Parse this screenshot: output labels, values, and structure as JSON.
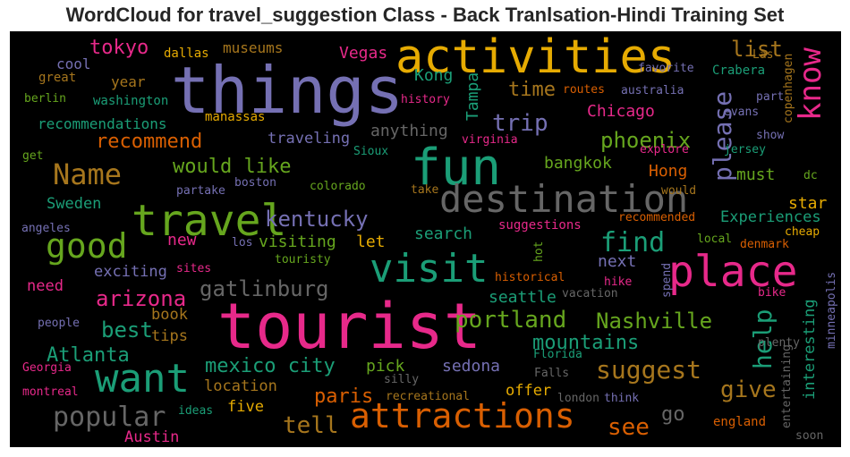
{
  "title": "WordCloud for travel_suggestion Class - Back Tranlsation-Hindi Training Set",
  "colors": {
    "background": "#000000",
    "purple": "#7570b3",
    "pink": "#e7298a",
    "orange": "#d95f02",
    "gold": "#e6ab02",
    "green": "#66a61e",
    "teal": "#1b9e77",
    "brown": "#a6761d",
    "grey": "#666666"
  },
  "words": [
    {
      "text": "things",
      "color": "purple"
    },
    {
      "text": "tourist",
      "color": "pink"
    },
    {
      "text": "activities",
      "color": "gold"
    },
    {
      "text": "fun",
      "color": "teal"
    },
    {
      "text": "destination",
      "color": "grey"
    },
    {
      "text": "travel",
      "color": "green"
    },
    {
      "text": "place",
      "color": "pink"
    },
    {
      "text": "visit",
      "color": "teal"
    },
    {
      "text": "attractions",
      "color": "orange"
    },
    {
      "text": "want",
      "color": "teal"
    },
    {
      "text": "good",
      "color": "green"
    },
    {
      "text": "Name",
      "color": "brown"
    },
    {
      "text": "know",
      "color": "pink"
    },
    {
      "text": "please",
      "color": "purple"
    },
    {
      "text": "portland",
      "color": "green"
    },
    {
      "text": "Nashville",
      "color": "green"
    },
    {
      "text": "suggest",
      "color": "brown"
    },
    {
      "text": "mountains",
      "color": "teal"
    },
    {
      "text": "popular",
      "color": "grey"
    },
    {
      "text": "kentucky",
      "color": "purple"
    },
    {
      "text": "find",
      "color": "teal"
    },
    {
      "text": "help",
      "color": "teal"
    },
    {
      "text": "gatlinburg",
      "color": "grey"
    },
    {
      "text": "mexico city",
      "color": "teal"
    },
    {
      "text": "would like",
      "color": "green"
    },
    {
      "text": "trip",
      "color": "purple"
    },
    {
      "text": "recommend",
      "color": "orange"
    },
    {
      "text": "phoenix",
      "color": "green"
    },
    {
      "text": "arizona",
      "color": "pink"
    },
    {
      "text": "Atlanta",
      "color": "teal"
    },
    {
      "text": "give",
      "color": "brown"
    },
    {
      "text": "see",
      "color": "orange"
    },
    {
      "text": "tell",
      "color": "brown"
    },
    {
      "text": "paris",
      "color": "orange"
    },
    {
      "text": "best",
      "color": "teal"
    },
    {
      "text": "tokyo",
      "color": "pink"
    },
    {
      "text": "time",
      "color": "brown"
    },
    {
      "text": "list",
      "color": "brown"
    },
    {
      "text": "Vegas",
      "color": "pink"
    },
    {
      "text": "Kong",
      "color": "teal"
    },
    {
      "text": "Tampa",
      "color": "teal"
    },
    {
      "text": "Chicago",
      "color": "pink"
    },
    {
      "text": "traveling",
      "color": "purple"
    },
    {
      "text": "anything",
      "color": "grey"
    },
    {
      "text": "bangkok",
      "color": "green"
    },
    {
      "text": "Hong",
      "color": "orange"
    },
    {
      "text": "must",
      "color": "green"
    },
    {
      "text": "Experiences",
      "color": "teal"
    },
    {
      "text": "star",
      "color": "gold"
    },
    {
      "text": "search",
      "color": "teal"
    },
    {
      "text": "next",
      "color": "purple"
    },
    {
      "text": "visiting",
      "color": "green"
    },
    {
      "text": "let",
      "color": "gold"
    },
    {
      "text": "new",
      "color": "pink"
    },
    {
      "text": "exciting",
      "color": "purple"
    },
    {
      "text": "Sweden",
      "color": "teal"
    },
    {
      "text": "seattle",
      "color": "teal"
    },
    {
      "text": "sedona",
      "color": "purple"
    },
    {
      "text": "pick",
      "color": "green"
    },
    {
      "text": "go",
      "color": "grey"
    },
    {
      "text": "interesting",
      "color": "teal"
    },
    {
      "text": "offer",
      "color": "gold"
    },
    {
      "text": "location",
      "color": "brown"
    },
    {
      "text": "five",
      "color": "gold"
    },
    {
      "text": "Austin",
      "color": "pink"
    },
    {
      "text": "tips",
      "color": "brown"
    },
    {
      "text": "book",
      "color": "brown"
    },
    {
      "text": "need",
      "color": "pink"
    },
    {
      "text": "cool",
      "color": "purple"
    },
    {
      "text": "year",
      "color": "brown"
    },
    {
      "text": "recommendations",
      "color": "teal"
    },
    {
      "text": "museums",
      "color": "brown"
    },
    {
      "text": "dallas",
      "color": "gold"
    },
    {
      "text": "great",
      "color": "brown"
    },
    {
      "text": "berlin",
      "color": "green"
    },
    {
      "text": "washington",
      "color": "teal"
    },
    {
      "text": "manassas",
      "color": "gold"
    },
    {
      "text": "history",
      "color": "pink"
    },
    {
      "text": "virginia",
      "color": "pink"
    },
    {
      "text": "routes",
      "color": "orange"
    },
    {
      "text": "australia",
      "color": "purple"
    },
    {
      "text": "favorite",
      "color": "purple"
    },
    {
      "text": "Las",
      "color": "brown"
    },
    {
      "text": "Crabera",
      "color": "teal"
    },
    {
      "text": "part",
      "color": "purple"
    },
    {
      "text": "evans",
      "color": "purple"
    },
    {
      "text": "copenhagen",
      "color": "brown"
    },
    {
      "text": "show",
      "color": "purple"
    },
    {
      "text": "jersey",
      "color": "teal"
    },
    {
      "text": "explore",
      "color": "pink"
    },
    {
      "text": "dc",
      "color": "green"
    },
    {
      "text": "would",
      "color": "brown"
    },
    {
      "text": "recommended",
      "color": "orange"
    },
    {
      "text": "suggestions",
      "color": "pink"
    },
    {
      "text": "cheap",
      "color": "gold"
    },
    {
      "text": "local",
      "color": "green"
    },
    {
      "text": "denmark",
      "color": "orange"
    },
    {
      "text": "Sioux",
      "color": "teal"
    },
    {
      "text": "colorado",
      "color": "green"
    },
    {
      "text": "boston",
      "color": "purple"
    },
    {
      "text": "partake",
      "color": "purple"
    },
    {
      "text": "take",
      "color": "brown"
    },
    {
      "text": "get",
      "color": "green"
    },
    {
      "text": "angeles",
      "color": "purple"
    },
    {
      "text": "los",
      "color": "purple"
    },
    {
      "text": "touristy",
      "color": "green"
    },
    {
      "text": "sites",
      "color": "pink"
    },
    {
      "text": "historical",
      "color": "orange"
    },
    {
      "text": "hot",
      "color": "green"
    },
    {
      "text": "hike",
      "color": "pink"
    },
    {
      "text": "vacation",
      "color": "grey"
    },
    {
      "text": "spend",
      "color": "purple"
    },
    {
      "text": "bike",
      "color": "pink"
    },
    {
      "text": "minneapolis",
      "color": "purple"
    },
    {
      "text": "plenty",
      "color": "grey"
    },
    {
      "text": "people",
      "color": "purple"
    },
    {
      "text": "Georgia",
      "color": "pink"
    },
    {
      "text": "Florida",
      "color": "teal"
    },
    {
      "text": "silly",
      "color": "grey"
    },
    {
      "text": "Falls",
      "color": "grey"
    },
    {
      "text": "montreal",
      "color": "pink"
    },
    {
      "text": "ideas",
      "color": "teal"
    },
    {
      "text": "recreational",
      "color": "brown"
    },
    {
      "text": "london",
      "color": "grey"
    },
    {
      "text": "think",
      "color": "purple"
    },
    {
      "text": "entertaining",
      "color": "grey"
    },
    {
      "text": "england",
      "color": "orange"
    },
    {
      "text": "soon",
      "color": "grey"
    }
  ]
}
